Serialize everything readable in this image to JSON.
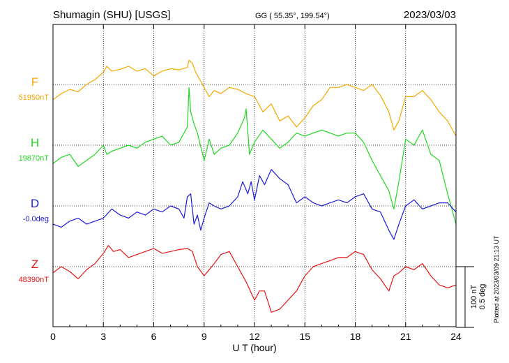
{
  "header": {
    "station": "Shumagin (SHU)  [USGS]",
    "coords": "GG ( 55.35°, 199.54°)",
    "date": "2023/03/03"
  },
  "footer": {
    "plotted": "Plotted at 2023/03/09 21:13 UT"
  },
  "chart_data": {
    "type": "line",
    "title": "",
    "xlabel": "U T (hour)",
    "xlim": [
      0,
      24
    ],
    "xticks": [
      0,
      3,
      6,
      9,
      12,
      15,
      18,
      21,
      24
    ],
    "grid": true,
    "y_units_label": "nT",
    "trace_scale": {
      "bar_nT": 100,
      "label_nT": "100 nT",
      "label_deg": "0.5 deg"
    },
    "series": [
      {
        "name": "F",
        "baseline_label": "51950nT",
        "color": "#f5a800",
        "x": [
          0,
          0.5,
          1,
          1.5,
          2,
          2.5,
          3,
          3.2,
          3.5,
          4,
          4.5,
          5,
          5.5,
          6,
          6.5,
          7,
          7.5,
          8,
          8.1,
          8.3,
          8.5,
          9,
          9.3,
          9.6,
          10,
          10.5,
          11,
          11.5,
          12,
          12.5,
          13,
          13.5,
          14,
          14.5,
          15,
          15.5,
          16,
          16.5,
          17,
          17.5,
          18,
          18.5,
          19,
          19.5,
          20,
          20.3,
          20.6,
          21,
          21.5,
          22,
          22.5,
          23,
          23.5,
          24
        ],
        "y": [
          -25,
          -15,
          -8,
          -12,
          0,
          8,
          20,
          30,
          22,
          25,
          30,
          22,
          26,
          14,
          22,
          26,
          24,
          28,
          40,
          35,
          20,
          -5,
          -20,
          -10,
          -15,
          -5,
          -8,
          -15,
          -20,
          -45,
          -32,
          -60,
          -52,
          -70,
          -55,
          -35,
          -25,
          -5,
          -5,
          0,
          -5,
          -10,
          0,
          -18,
          -45,
          -75,
          -60,
          -20,
          -20,
          -10,
          -25,
          -45,
          -60,
          -85
        ]
      },
      {
        "name": "H",
        "baseline_label": "19870nT",
        "color": "#1fd81f",
        "x": [
          0,
          0.5,
          1,
          1.5,
          2,
          2.5,
          3,
          3.2,
          3.5,
          4,
          4.5,
          5,
          5.5,
          6,
          6.5,
          7,
          7.5,
          7.8,
          8,
          8.1,
          8.2,
          8.4,
          8.6,
          9,
          9.3,
          9.6,
          10,
          10.5,
          11,
          11.4,
          11.5,
          11.7,
          12,
          12.5,
          13,
          13.5,
          14,
          14.5,
          15,
          15.5,
          16,
          16.5,
          17,
          17.5,
          18,
          18.5,
          19,
          19.5,
          20,
          20.3,
          20.6,
          21,
          21.5,
          22,
          22.5,
          23,
          23.5,
          24
        ],
        "y": [
          -30,
          -20,
          -15,
          -35,
          -25,
          -15,
          0,
          -15,
          -10,
          -5,
          0,
          -5,
          5,
          10,
          15,
          0,
          5,
          20,
          30,
          95,
          55,
          35,
          20,
          -25,
          10,
          -15,
          -5,
          0,
          20,
          45,
          60,
          -15,
          5,
          25,
          10,
          -5,
          5,
          20,
          15,
          20,
          25,
          20,
          15,
          20,
          20,
          5,
          -25,
          -50,
          -75,
          -105,
          -60,
          10,
          0,
          25,
          -15,
          -25,
          -80,
          -130
        ]
      },
      {
        "name": "D",
        "baseline_label": "-0.0deg",
        "color": "#1a1ad8",
        "x": [
          0,
          0.5,
          1,
          1.5,
          2,
          2.5,
          3,
          3.5,
          4,
          4.5,
          5,
          5.5,
          6,
          6.5,
          7,
          7.5,
          7.8,
          8,
          8.2,
          8.4,
          8.6,
          8.8,
          9,
          9.3,
          9.6,
          10,
          10.5,
          11,
          11.3,
          11.6,
          11.8,
          12,
          12.3,
          12.6,
          13,
          13.5,
          14,
          14.5,
          15,
          15.5,
          16,
          16.5,
          17,
          17.5,
          18,
          18.5,
          19,
          19.5,
          20,
          20.3,
          20.6,
          21,
          21.5,
          22,
          22.5,
          23,
          23.5,
          24
        ],
        "y": [
          -30,
          -35,
          -25,
          -20,
          -30,
          -25,
          -20,
          -5,
          -15,
          -20,
          -10,
          -15,
          -5,
          -10,
          0,
          -5,
          -20,
          15,
          20,
          -30,
          -15,
          -40,
          -20,
          5,
          0,
          -5,
          0,
          15,
          40,
          20,
          40,
          10,
          50,
          35,
          60,
          45,
          35,
          5,
          15,
          5,
          0,
          5,
          10,
          5,
          15,
          20,
          -5,
          -10,
          -40,
          -55,
          -30,
          0,
          10,
          -5,
          0,
          5,
          5,
          -10
        ]
      },
      {
        "name": "Z",
        "baseline_label": "48390nT",
        "color": "#e51414",
        "x": [
          0,
          0.5,
          1,
          1.5,
          2,
          2.5,
          3,
          3.3,
          3.6,
          4,
          4.5,
          5,
          5.5,
          6,
          6.5,
          7,
          7.5,
          8,
          8.3,
          8.6,
          9,
          9.3,
          9.6,
          10,
          10.5,
          11,
          11.5,
          12,
          12.3,
          12.6,
          13,
          13.5,
          14,
          14.5,
          15,
          15.5,
          16,
          16.5,
          17,
          17.5,
          18,
          18.5,
          19,
          19.5,
          20,
          20.3,
          20.6,
          21,
          21.5,
          22,
          22.5,
          23,
          23.5,
          24
        ],
        "y": [
          -10,
          0,
          -8,
          -20,
          -5,
          5,
          22,
          35,
          25,
          28,
          15,
          20,
          25,
          30,
          22,
          25,
          28,
          30,
          25,
          0,
          -15,
          -5,
          5,
          20,
          25,
          0,
          -25,
          -55,
          -40,
          -40,
          -75,
          -70,
          -55,
          -40,
          -15,
          0,
          5,
          10,
          15,
          15,
          25,
          20,
          -5,
          -20,
          -40,
          -15,
          -10,
          0,
          -5,
          5,
          -15,
          -30,
          -35,
          -30
        ]
      }
    ]
  }
}
